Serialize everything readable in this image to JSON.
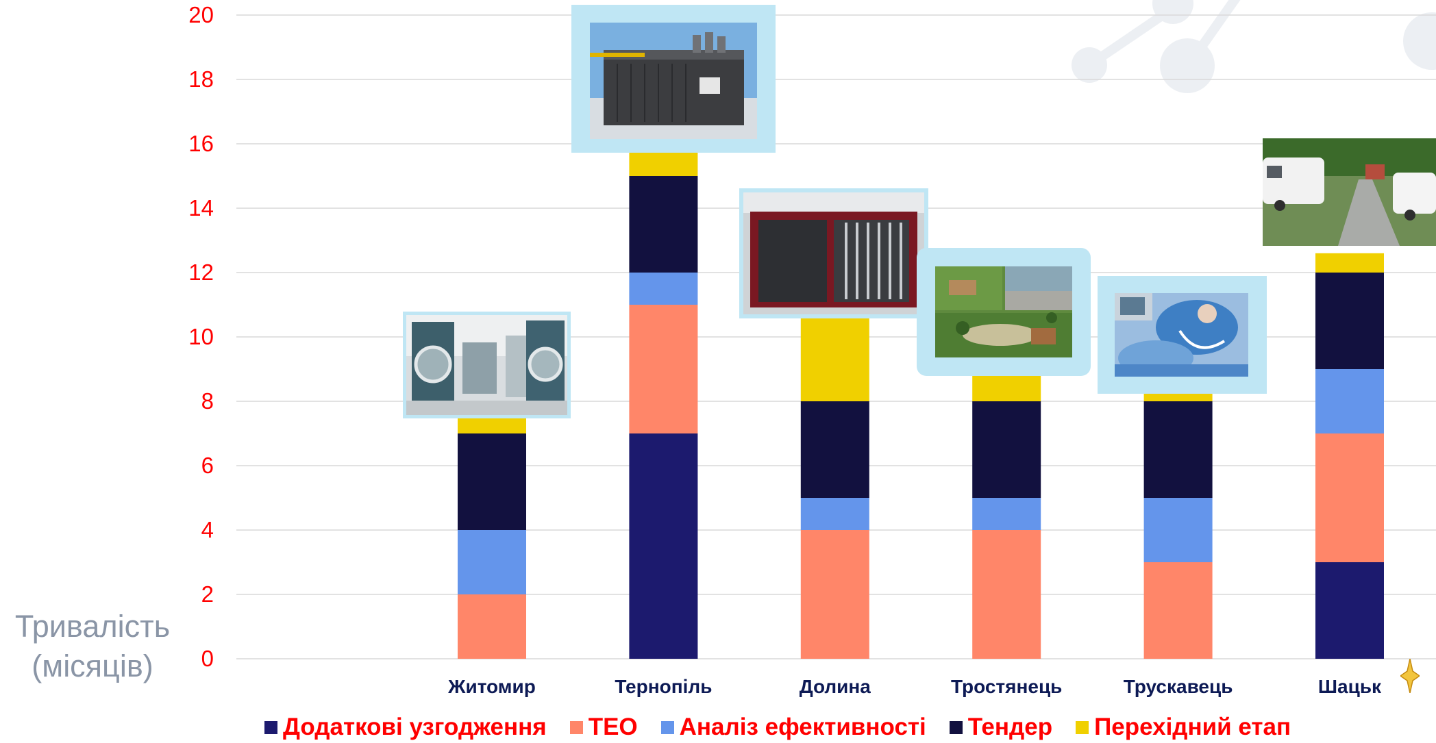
{
  "chart_data": {
    "type": "bar",
    "stacked": true,
    "ylabel_lines": [
      "Тривалість",
      "(місяців)"
    ],
    "ylim": [
      0,
      20
    ],
    "yticks": [
      0,
      2,
      4,
      6,
      8,
      10,
      12,
      14,
      16,
      18,
      20
    ],
    "grid": true,
    "legend_position": "bottom",
    "categories": [
      "Житомир",
      "Тернопіль",
      "Долина",
      "Тростянець",
      "Трускавець",
      "Шацьк"
    ],
    "series": [
      {
        "name": "Додаткові узгодження",
        "color": "#1c1a6e",
        "values": [
          0,
          7,
          0,
          0,
          0,
          3
        ]
      },
      {
        "name": "ТЕО",
        "color": "#ff8669",
        "values": [
          2,
          4,
          4,
          4,
          3,
          4
        ]
      },
      {
        "name": "Аналіз ефективності",
        "color": "#6495eb",
        "values": [
          2,
          1,
          1,
          1,
          2,
          2
        ]
      },
      {
        "name": "Тендер",
        "color": "#12113f",
        "values": [
          3,
          3,
          3,
          3,
          3,
          3
        ]
      },
      {
        "name": "Перехідний  етап",
        "color": "#f0d000",
        "values": [
          0.5,
          0.75,
          2.6,
          1.5,
          0.25,
          0.6
        ]
      }
    ]
  },
  "photos": [
    {
      "category": "Житомир",
      "subject": "laundry-machines"
    },
    {
      "category": "Тернопіль",
      "subject": "generator-container"
    },
    {
      "category": "Долина",
      "subject": "boiler-container"
    },
    {
      "category": "Тростянець",
      "subject": "park-plan"
    },
    {
      "category": "Трускавець",
      "subject": "medical-procedure"
    },
    {
      "category": "Шацьк",
      "subject": "camper-park"
    }
  ],
  "icons": {
    "decor": "molecule-icon",
    "corner": "star-icon"
  }
}
